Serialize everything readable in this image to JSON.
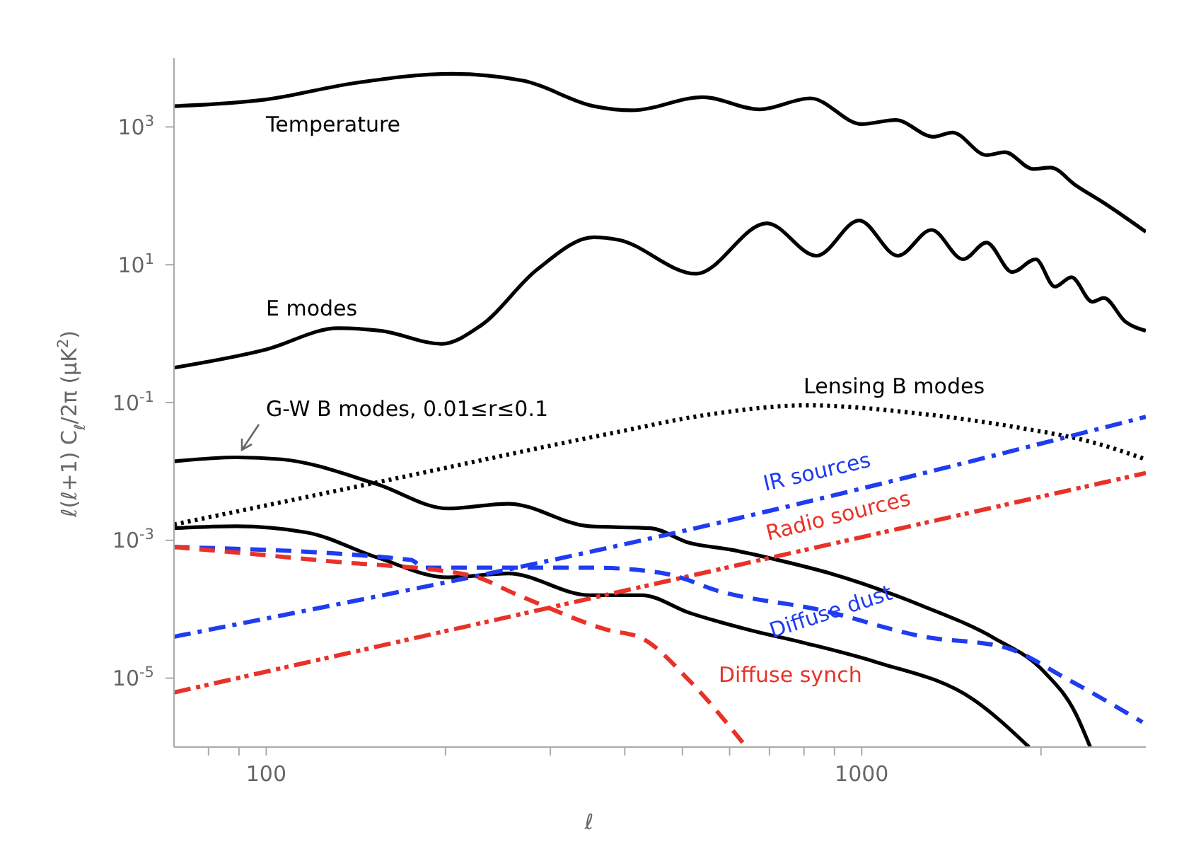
{
  "chart_data": {
    "type": "line",
    "xlabel": "ℓ",
    "ylabel": "ℓ(ℓ+1) C$_{ℓ}$/2π   (μK$^{2}$)",
    "log": "xy",
    "xlim": [
      70,
      3000
    ],
    "ylim": [
      1e-06,
      10000
    ],
    "xticks": [
      {
        "value": 80,
        "label": null
      },
      {
        "value": 90,
        "label": null
      },
      100,
      {
        "value": 200,
        "label": null
      },
      {
        "value": 300,
        "label": null
      },
      {
        "value": 400,
        "label": null
      },
      {
        "value": 500,
        "label": null
      },
      {
        "value": 600,
        "label": null
      },
      {
        "value": 700,
        "label": null
      },
      {
        "value": 800,
        "label": null
      },
      {
        "value": 900,
        "label": null
      },
      1000,
      {
        "value": 2000,
        "label": null
      }
    ],
    "yticks": [
      {
        "value": 1e-05,
        "label": "10$^{-5}$"
      },
      {
        "value": 0.001,
        "label": "10$^{-3}$"
      },
      {
        "value": 0.1,
        "label": "10$^{-1}$"
      },
      {
        "value": 10,
        "label": "10$^{1}$"
      },
      {
        "value": 1000,
        "label": "10$^{3}$"
      }
    ],
    "series": [
      {
        "name": "Temperature",
        "color": "#000000",
        "line_style": "solid",
        "x": [
          70,
          100,
          140,
          205,
          270,
          355,
          411,
          541,
          674,
          820,
          1000,
          1140,
          1320,
          1420,
          1620,
          1740,
          1940,
          2075,
          2290,
          2550,
          3000
        ],
        "values": [
          2000,
          2500,
          4300,
          5900,
          4700,
          2000,
          1740,
          2700,
          1800,
          2600,
          1100,
          1260,
          720,
          830,
          390,
          430,
          245,
          257,
          141,
          79,
          30
        ]
      },
      {
        "name": "E modes",
        "color": "#000000",
        "line_style": "solid",
        "x": [
          70,
          100,
          132,
          156,
          197,
          229,
          285,
          355,
          390,
          527,
          693,
          840,
          990,
          1150,
          1310,
          1480,
          1620,
          1790,
          1960,
          2110,
          2250,
          2440,
          2550,
          2770,
          3000
        ],
        "values": [
          0.32,
          0.59,
          1.2,
          1.1,
          0.71,
          1.3,
          8.5,
          25,
          23,
          7.4,
          40,
          13.5,
          44,
          13.5,
          32,
          12,
          21,
          7.8,
          12,
          4.8,
          6.6,
          2.9,
          3.3,
          1.5,
          1.1
        ]
      },
      {
        "name": "G-W B modes, 0.01≤r≤0.1",
        "color": "#000000",
        "line_style": "solid",
        "x": [
          70,
          89,
          106,
          153,
          202,
          255,
          349,
          442,
          513,
          604,
          736,
          887,
          1270,
          1670,
          2020,
          2290,
          2420
        ],
        "values": [
          0.014,
          0.016,
          0.015,
          0.0066,
          0.0029,
          0.0034,
          0.0016,
          0.0015,
          0.00092,
          0.00073,
          0.0005,
          0.00033,
          0.00011,
          3.8e-05,
          1.26e-05,
          3e-06,
          1e-06
        ]
      },
      {
        "color": "#000000",
        "line_style": "solid",
        "x": [
          70,
          89,
          117,
          153,
          202,
          255,
          349,
          427,
          513,
          648,
          807,
          1060,
          1540,
          1910
        ],
        "values": [
          0.0015,
          0.0016,
          0.0013,
          0.00057,
          0.00029,
          0.00033,
          0.00016,
          0.00016,
          8.9e-05,
          5e-05,
          3.2e-05,
          1.7e-05,
          4.9e-06,
          1e-06
        ]
      },
      {
        "name": "Lensing B modes",
        "color": "#000000",
        "line_style": "dotted",
        "x": [
          70,
          153,
          375,
          560,
          807,
          1270,
          1840,
          2420,
          3000
        ],
        "values": [
          0.0017,
          0.0069,
          0.035,
          0.068,
          0.091,
          0.068,
          0.043,
          0.027,
          0.015
        ]
      },
      {
        "name": "IR sources",
        "color": "#1f3cf0",
        "line_style": "dashdot",
        "x": [
          70,
          449,
          3000
        ],
        "values": [
          4e-05,
          0.0011,
          0.062
        ]
      },
      {
        "name": "Radio sources",
        "color": "#e83228",
        "line_style": "dashdotdot",
        "x": [
          70,
          3000
        ],
        "values": [
          6.2e-06,
          0.0095
        ]
      },
      {
        "name": "Diffuse dust",
        "color": "#1f3cf0",
        "line_style": "dashed",
        "x": [
          70,
          175,
          184,
          355,
          467,
          580,
          850,
          1270,
          1740,
          2200,
          2960
        ],
        "values": [
          0.0008,
          0.00052,
          0.0004,
          0.0004,
          0.00033,
          0.00018,
          9.8e-05,
          4e-05,
          2.8e-05,
          1e-05,
          2.3e-06
        ]
      },
      {
        "name": "Diffuse synch",
        "color": "#e83228",
        "line_style": "dashed",
        "x": [
          70,
          127,
          220,
          265,
          375,
          427,
          513,
          640
        ],
        "values": [
          0.0008,
          0.0005,
          0.00031,
          0.00016,
          5e-05,
          3.8e-05,
          9.3e-06,
          1e-06
        ]
      }
    ]
  }
}
